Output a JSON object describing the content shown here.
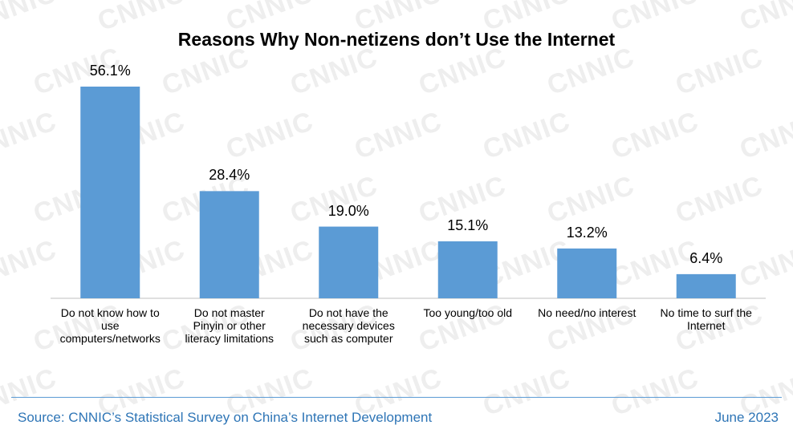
{
  "watermark_text": "CNNIC",
  "chart_data": {
    "type": "bar",
    "title": "Reasons Why Non-netizens don’t Use the Internet",
    "categories": [
      "Do not know how to use computers/networks",
      "Do not master Pinyin or other literacy limitations",
      "Do not have the necessary devices such as computer",
      "Too young/too old",
      "No need/no interest",
      "No time to surf the Internet"
    ],
    "category_lines": [
      [
        "Do not know how to",
        "use",
        "computers/networks"
      ],
      [
        "Do not master",
        "Pinyin or other",
        "literacy limitations"
      ],
      [
        "Do not have the",
        "necessary devices",
        "such as computer"
      ],
      [
        "Too young/too old"
      ],
      [
        "No need/no interest"
      ],
      [
        "No time to surf the",
        "Internet"
      ]
    ],
    "values": [
      56.1,
      28.4,
      19.0,
      15.1,
      13.2,
      6.4
    ],
    "value_labels": [
      "56.1%",
      "28.4%",
      "19.0%",
      "15.1%",
      "13.2%",
      "6.4%"
    ],
    "bar_color": "#5b9bd5",
    "ylim": [
      0,
      60
    ],
    "grid": false,
    "legend": "none"
  },
  "footer": {
    "source": "Source: CNNIC’s Statistical Survey on China’s Internet Development",
    "date": "June 2023",
    "accent_color": "#2e75b6"
  }
}
